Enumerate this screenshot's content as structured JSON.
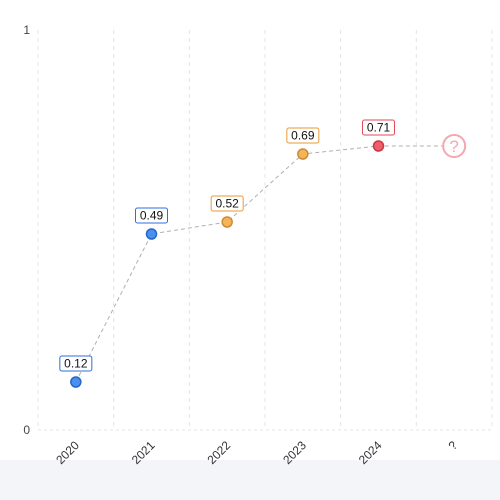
{
  "chart_data": {
    "type": "line",
    "categories": [
      "2020",
      "2021",
      "2022",
      "2023",
      "2024",
      "?"
    ],
    "values": [
      0.12,
      0.49,
      0.52,
      0.69,
      0.71,
      0.71
    ],
    "value_labels": [
      "0.12",
      "0.49",
      "0.52",
      "0.69",
      "0.71",
      ""
    ],
    "point_colors": [
      "#4b8ff0",
      "#4b8ff0",
      "#f5b35a",
      "#f5b35a",
      "#ef5f6a",
      "#f6a6ae"
    ],
    "label_border_colors": [
      "#2f6fdc",
      "#2f6fdc",
      "#e89a36",
      "#e89a36",
      "#e34a57",
      ""
    ],
    "unknown_marker": "?",
    "ylim": [
      0,
      1
    ],
    "y_ticks": [
      "0",
      "1"
    ],
    "grid": true,
    "line_style": "dashed",
    "line_color": "#b0b0b0"
  }
}
